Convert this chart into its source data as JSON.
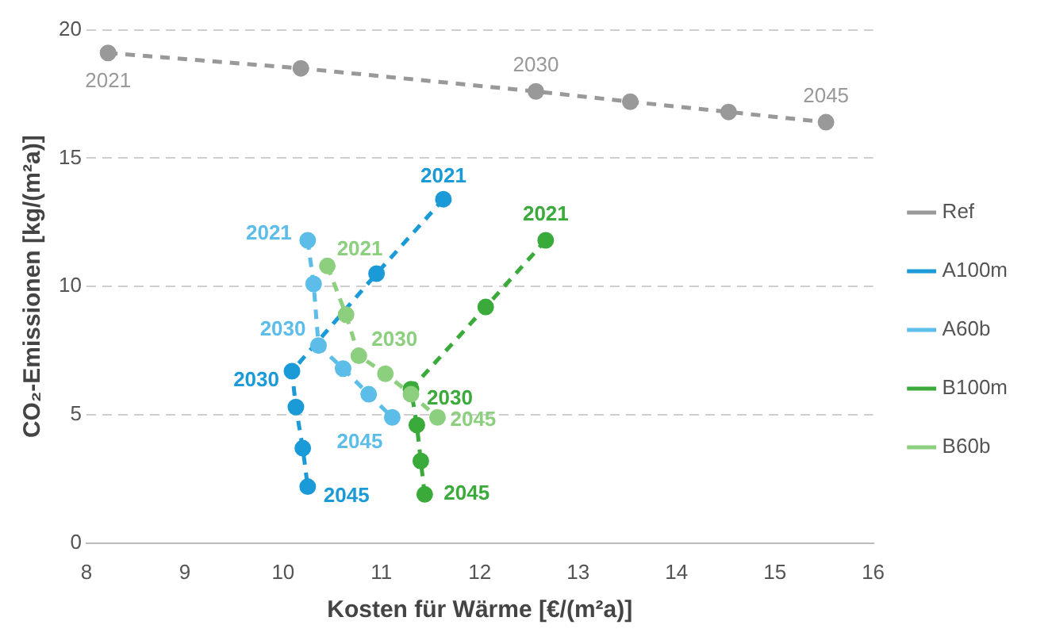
{
  "chart_data": {
    "type": "line",
    "xlabel": "Kosten für Wärme [€/(m²a)]",
    "ylabel": "CO₂-Emissionen [kg/(m²a)]",
    "xlim": [
      8,
      16
    ],
    "xticks": [
      8,
      9,
      10,
      11,
      12,
      13,
      14,
      15,
      16
    ],
    "ylim": [
      0,
      20
    ],
    "yticks": [
      0,
      5,
      10,
      15,
      20
    ],
    "grid": "y",
    "legend": "right",
    "marker": "circle",
    "line_style": "dashed",
    "series": [
      {
        "name": "Ref",
        "color": "#999999",
        "x": [
          8.22,
          10.18,
          12.57,
          13.53,
          14.53,
          15.52
        ],
        "values": [
          19.1,
          18.5,
          17.6,
          17.2,
          16.8,
          16.4
        ]
      },
      {
        "name": "A100m",
        "color": "#1a9ad6",
        "x": [
          11.63,
          10.95,
          10.09,
          10.13,
          10.2,
          10.25
        ],
        "values": [
          13.4,
          10.5,
          6.7,
          5.3,
          3.7,
          2.2
        ]
      },
      {
        "name": "A60b",
        "color": "#5bbde8",
        "x": [
          10.25,
          10.31,
          10.36,
          10.61,
          10.87,
          11.11
        ],
        "values": [
          11.8,
          10.1,
          7.7,
          6.8,
          5.8,
          4.9
        ]
      },
      {
        "name": "B100m",
        "color": "#3aaa3a",
        "x": [
          12.67,
          12.06,
          11.3,
          11.36,
          11.4,
          11.44
        ],
        "values": [
          11.8,
          9.2,
          6.0,
          4.6,
          3.2,
          1.9
        ]
      },
      {
        "name": "B60b",
        "color": "#8ccf7e",
        "x": [
          10.45,
          10.64,
          10.77,
          11.04,
          11.3,
          11.57
        ],
        "values": [
          10.8,
          8.9,
          7.3,
          6.6,
          5.8,
          4.9
        ]
      }
    ],
    "annotations": [
      {
        "text": "2021",
        "x": 8.22,
        "y": 19.1
      },
      {
        "text": "2030",
        "x": 12.57,
        "y": 17.6
      },
      {
        "text": "2045",
        "x": 15.52,
        "y": 16.4
      },
      {
        "text": "2021",
        "x": 11.63,
        "y": 13.4
      },
      {
        "text": "2030",
        "x": 10.09,
        "y": 6.7
      },
      {
        "text": "2045",
        "x": 10.25,
        "y": 2.2
      },
      {
        "text": "2021",
        "x": 10.25,
        "y": 11.8
      },
      {
        "text": "2030",
        "x": 10.36,
        "y": 7.7
      },
      {
        "text": "2045",
        "x": 11.11,
        "y": 4.9
      },
      {
        "text": "2021",
        "x": 12.67,
        "y": 11.8
      },
      {
        "text": "2030",
        "x": 11.3,
        "y": 6.0
      },
      {
        "text": "2045",
        "x": 11.44,
        "y": 1.9
      },
      {
        "text": "2021",
        "x": 10.45,
        "y": 10.8
      },
      {
        "text": "2030",
        "x": 10.77,
        "y": 7.3
      },
      {
        "text": "2045",
        "x": 11.57,
        "y": 4.9
      }
    ]
  }
}
